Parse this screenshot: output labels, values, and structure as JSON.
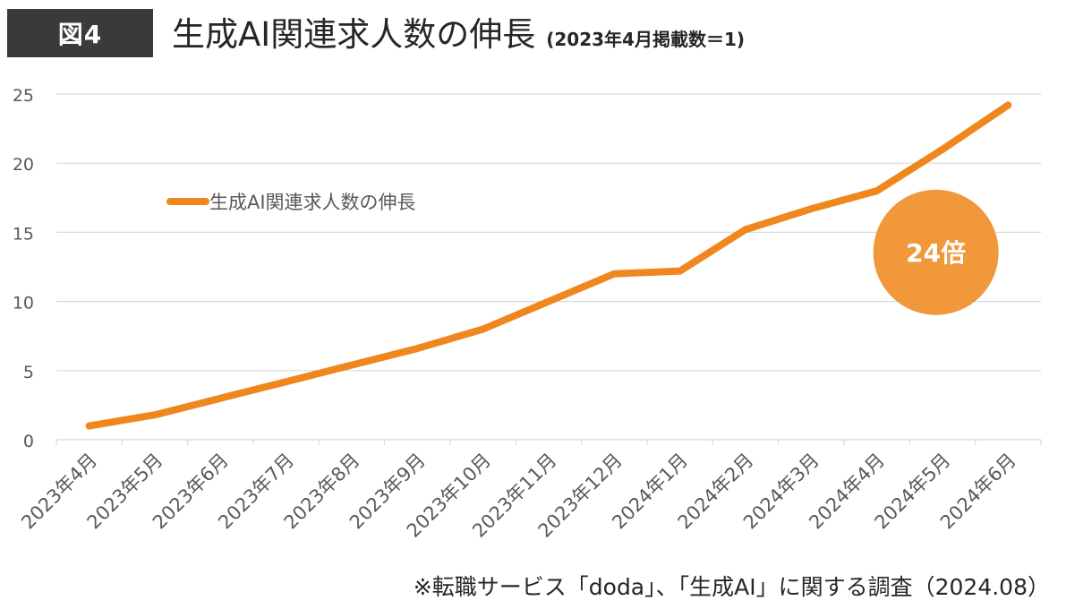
{
  "figure_label": "図4",
  "title": "生成AI関連求人数の伸長",
  "subtitle": "(2023年4月掲載数＝1)",
  "source_note": "※転職サービス「doda」、「生成AI」に関する調査（2024.08）",
  "colors": {
    "line": "#F0871E",
    "bubble": "#F0983A",
    "grid": "#D9D9D9",
    "badge": "#3A3A3A"
  },
  "chart_data": {
    "type": "line",
    "categories": [
      "2023年4月",
      "2023年5月",
      "2023年6月",
      "2023年7月",
      "2023年8月",
      "2023年9月",
      "2023年10月",
      "2023年11月",
      "2023年12月",
      "2024年1月",
      "2024年2月",
      "2024年3月",
      "2024年4月",
      "2024年5月",
      "2024年6月"
    ],
    "series": [
      {
        "name": "生成AI関連求人数の伸長",
        "values": [
          1.0,
          1.8,
          3.0,
          4.2,
          5.4,
          6.6,
          8.0,
          10.0,
          12.0,
          12.2,
          15.2,
          16.7,
          18.0,
          21.0,
          24.2
        ]
      }
    ],
    "ylim": [
      0,
      25
    ],
    "yticks": [
      0,
      5,
      10,
      15,
      20,
      25
    ],
    "grid": true,
    "legend_position": "top-left",
    "annotation": {
      "text": "24倍"
    }
  }
}
